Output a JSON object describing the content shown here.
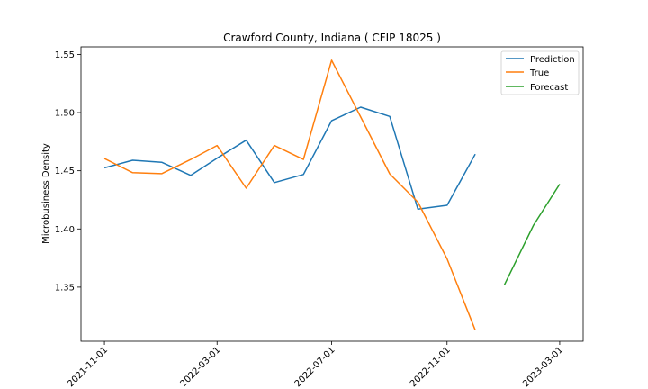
{
  "chart_data": {
    "type": "line",
    "title": "Crawford County, Indiana ( CFIP 18025 )",
    "xlabel": "",
    "ylabel": "Microbusiness Density",
    "xlim": [
      "2021-10-07",
      "2023-03-26"
    ],
    "ylim": [
      1.3035,
      1.5565
    ],
    "x_ticks": [
      "2021-11-01",
      "2022-03-01",
      "2022-07-01",
      "2022-11-01",
      "2023-03-01"
    ],
    "y_ticks": [
      1.35,
      1.4,
      1.45,
      1.5,
      1.55
    ],
    "y_tick_labels": [
      "1.35",
      "1.40",
      "1.45",
      "1.50",
      "1.55"
    ],
    "grid": false,
    "legend_position": "top-right",
    "series": [
      {
        "name": "Prediction",
        "color": "#1f77b4",
        "x": [
          "2021-11-01",
          "2021-12-01",
          "2022-01-01",
          "2022-02-01",
          "2022-03-01",
          "2022-04-01",
          "2022-05-01",
          "2022-06-01",
          "2022-07-01",
          "2022-08-01",
          "2022-09-01",
          "2022-10-01",
          "2022-11-01",
          "2022-12-01"
        ],
        "values": [
          1.4525,
          1.459,
          1.4573,
          1.446,
          1.4608,
          1.4763,
          1.4398,
          1.4468,
          1.493,
          1.5047,
          1.4967,
          1.417,
          1.4203,
          1.4643
        ]
      },
      {
        "name": "True",
        "color": "#ff7f0e",
        "x": [
          "2021-11-01",
          "2021-12-01",
          "2022-01-01",
          "2022-02-01",
          "2022-03-01",
          "2022-04-01",
          "2022-05-01",
          "2022-06-01",
          "2022-07-01",
          "2022-08-01",
          "2022-09-01",
          "2022-10-01",
          "2022-11-01",
          "2022-12-01"
        ],
        "values": [
          1.4605,
          1.4483,
          1.4475,
          1.4597,
          1.4717,
          1.435,
          1.4717,
          1.4597,
          1.545,
          1.4962,
          1.4473,
          1.423,
          1.3743,
          1.313
        ]
      },
      {
        "name": "Forecast",
        "color": "#2ca02c",
        "x": [
          "2023-01-01",
          "2023-02-01",
          "2023-03-01"
        ],
        "values": [
          1.3518,
          1.403,
          1.4385
        ]
      }
    ]
  }
}
